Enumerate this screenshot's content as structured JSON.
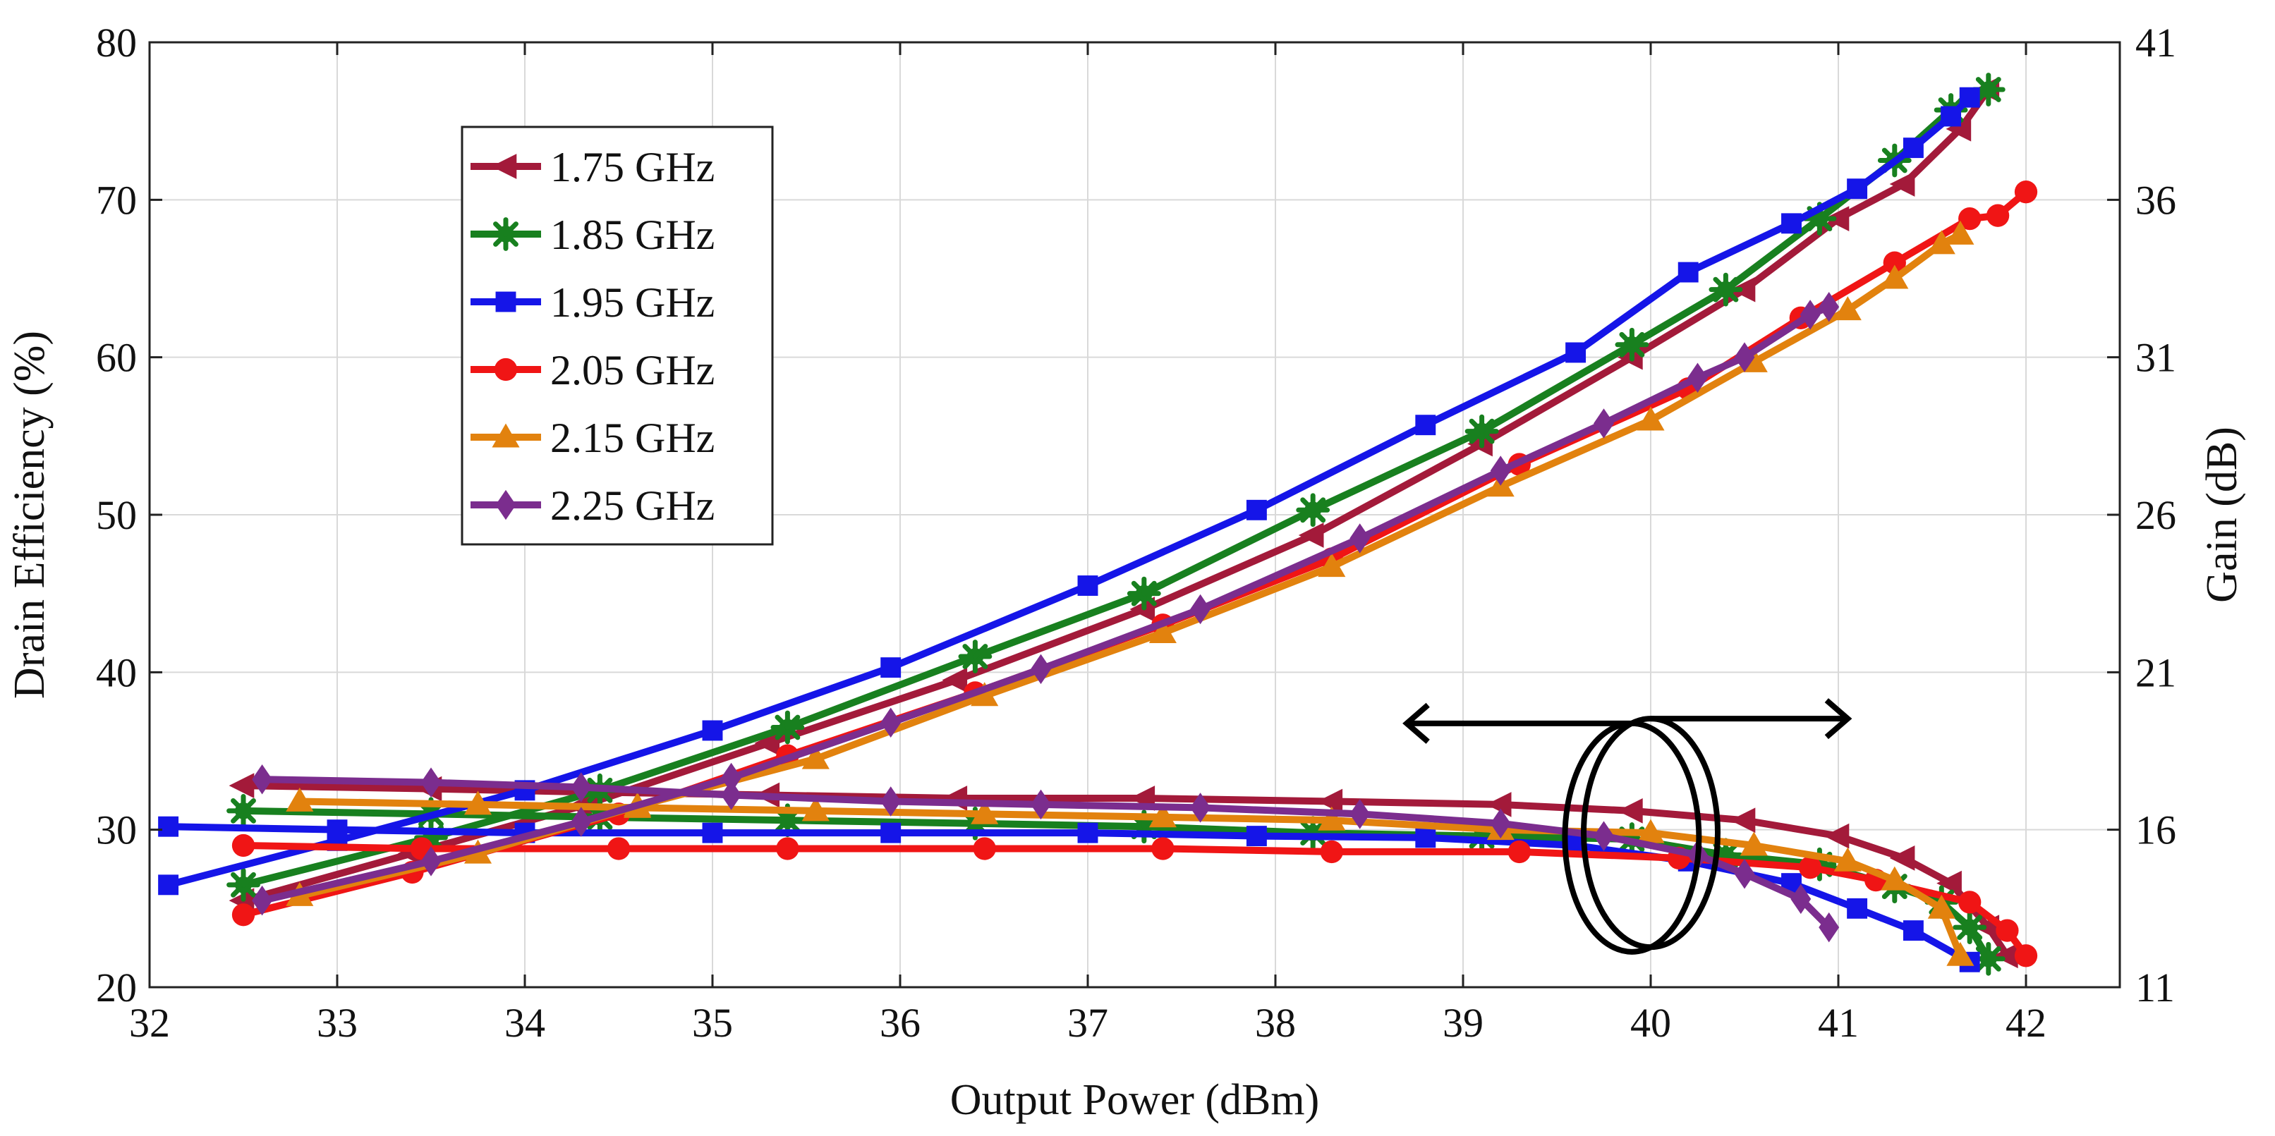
{
  "chart_data": {
    "type": "line",
    "title": "",
    "xlabel": "Output Power (dBm)",
    "ylabel": "Drain Efficiency (%)",
    "y2label": "Gain (dB)",
    "xlim": [
      32,
      42.5
    ],
    "ylim": [
      20,
      80
    ],
    "y2lim": [
      11,
      41
    ],
    "xticks": [
      32,
      33,
      34,
      35,
      36,
      37,
      38,
      39,
      40,
      41,
      42
    ],
    "yticks": [
      20,
      30,
      40,
      50,
      60,
      70,
      80
    ],
    "y2ticks": [
      11,
      16,
      21,
      26,
      31,
      36,
      41
    ],
    "grid": true,
    "legend_position": "upper-left",
    "series": [
      {
        "name": "1.75 GHz",
        "color": "#a31a3a",
        "marker": "triangle-left",
        "efficiency": {
          "x": [
            32.5,
            33.4,
            34.3,
            35.3,
            36.3,
            37.3,
            38.2,
            39.1,
            39.9,
            40.5,
            41.0,
            41.35,
            41.65,
            41.8
          ],
          "y": [
            25.5,
            28.5,
            31.5,
            35.5,
            39.5,
            44.0,
            48.7,
            54.5,
            60.0,
            64.3,
            68.8,
            71.0,
            74.5,
            77.0
          ]
        },
        "gain": {
          "x": [
            32.5,
            33.5,
            34.3,
            35.3,
            36.3,
            37.3,
            38.3,
            39.2,
            39.9,
            40.5,
            41.0,
            41.35,
            41.6,
            41.8,
            41.9
          ],
          "y": [
            17.4,
            17.3,
            17.2,
            17.1,
            17.0,
            17.0,
            16.9,
            16.8,
            16.6,
            16.3,
            15.8,
            15.1,
            14.3,
            12.9,
            12.0
          ]
        }
      },
      {
        "name": "1.85 GHz",
        "color": "#18801f",
        "marker": "asterisk",
        "efficiency": {
          "x": [
            32.5,
            33.5,
            34.4,
            35.4,
            36.4,
            37.3,
            38.2,
            39.1,
            39.9,
            40.4,
            40.9,
            41.3,
            41.6,
            41.8
          ],
          "y": [
            26.5,
            29.5,
            32.5,
            36.5,
            41.0,
            45.0,
            50.3,
            55.3,
            60.8,
            64.3,
            68.8,
            72.5,
            75.7,
            77.0
          ]
        },
        "gain": {
          "x": [
            32.5,
            33.5,
            34.4,
            35.4,
            36.4,
            37.3,
            38.2,
            39.1,
            39.9,
            40.4,
            40.9,
            41.3,
            41.55,
            41.7,
            41.8
          ],
          "y": [
            16.6,
            16.5,
            16.4,
            16.3,
            16.2,
            16.1,
            15.9,
            15.8,
            15.7,
            15.2,
            14.9,
            14.2,
            13.7,
            12.9,
            11.9
          ]
        }
      },
      {
        "name": "1.95 GHz",
        "color": "#1515e8",
        "marker": "square",
        "efficiency": {
          "x": [
            32.1,
            33.0,
            34.0,
            35.0,
            35.95,
            37.0,
            37.9,
            38.8,
            39.6,
            40.2,
            40.75,
            41.1,
            41.4,
            41.6,
            41.7
          ],
          "y": [
            26.5,
            29.3,
            32.5,
            36.3,
            40.3,
            45.5,
            50.3,
            55.7,
            60.3,
            65.4,
            68.5,
            70.7,
            73.3,
            75.3,
            76.5
          ]
        },
        "gain": {
          "x": [
            32.1,
            33.0,
            34.0,
            35.0,
            35.95,
            37.0,
            37.9,
            38.8,
            39.6,
            40.2,
            40.75,
            41.1,
            41.4,
            41.7
          ],
          "y": [
            16.1,
            16.0,
            15.9,
            15.9,
            15.9,
            15.9,
            15.8,
            15.75,
            15.5,
            15.0,
            14.3,
            13.5,
            12.8,
            11.8
          ]
        }
      },
      {
        "name": "2.05 GHz",
        "color": "#f01515",
        "marker": "circle",
        "efficiency": {
          "x": [
            32.5,
            33.4,
            34.5,
            35.4,
            36.4,
            37.4,
            38.3,
            39.3,
            40.2,
            40.8,
            41.3,
            41.7,
            41.85,
            42.0
          ],
          "y": [
            24.6,
            27.3,
            31.0,
            34.7,
            38.7,
            43.0,
            47.2,
            53.2,
            58.0,
            62.5,
            66.0,
            68.8,
            69.0,
            70.5
          ]
        },
        "gain": {
          "x": [
            32.5,
            33.45,
            34.5,
            35.4,
            36.45,
            37.4,
            38.3,
            39.3,
            40.15,
            40.85,
            41.2,
            41.7,
            41.9,
            42.0
          ],
          "y": [
            15.5,
            15.4,
            15.4,
            15.4,
            15.4,
            15.4,
            15.3,
            15.3,
            15.1,
            14.8,
            14.4,
            13.7,
            12.8,
            12.0
          ]
        }
      },
      {
        "name": "2.15 GHz",
        "color": "#e2820e",
        "marker": "triangle-up",
        "efficiency": {
          "x": [
            32.8,
            33.75,
            34.6,
            35.55,
            36.45,
            37.4,
            38.3,
            39.2,
            40.0,
            40.55,
            41.05,
            41.3,
            41.55,
            41.65
          ],
          "y": [
            25.8,
            28.5,
            31.5,
            34.5,
            38.5,
            42.5,
            46.7,
            51.8,
            56.0,
            59.7,
            63.0,
            65.0,
            67.2,
            67.8
          ]
        },
        "gain": {
          "x": [
            32.8,
            33.75,
            34.6,
            35.55,
            36.45,
            37.4,
            38.3,
            39.2,
            40.0,
            40.55,
            41.05,
            41.3,
            41.55,
            41.65
          ],
          "y": [
            16.9,
            16.8,
            16.7,
            16.6,
            16.5,
            16.4,
            16.3,
            16.0,
            15.9,
            15.5,
            15.0,
            14.4,
            13.5,
            12.0
          ]
        }
      },
      {
        "name": "2.25 GHz",
        "color": "#7b2d8e",
        "marker": "diamond",
        "efficiency": {
          "x": [
            32.6,
            33.5,
            34.3,
            35.1,
            35.95,
            36.75,
            37.6,
            38.45,
            39.2,
            39.75,
            40.25,
            40.5,
            40.85,
            40.95
          ],
          "y": [
            25.5,
            28.0,
            30.5,
            33.3,
            36.8,
            40.2,
            44.0,
            48.5,
            52.8,
            55.8,
            58.7,
            60.0,
            62.7,
            63.2
          ]
        },
        "gain": {
          "x": [
            32.6,
            33.5,
            34.3,
            35.1,
            35.95,
            36.75,
            37.6,
            38.45,
            39.2,
            39.75,
            40.25,
            40.5,
            40.8,
            40.95
          ],
          "y": [
            17.6,
            17.5,
            17.35,
            17.1,
            16.9,
            16.8,
            16.7,
            16.5,
            16.2,
            15.8,
            15.2,
            14.6,
            13.8,
            12.9
          ]
        }
      }
    ],
    "annotations": [
      {
        "type": "ellipse-arrow",
        "target": "efficiency",
        "arrow_direction": "left",
        "center": [
          39.9,
          29.5
        ]
      },
      {
        "type": "ellipse-arrow",
        "target": "gain",
        "arrow_direction": "right",
        "center": [
          40.0,
          15.9
        ]
      }
    ]
  }
}
